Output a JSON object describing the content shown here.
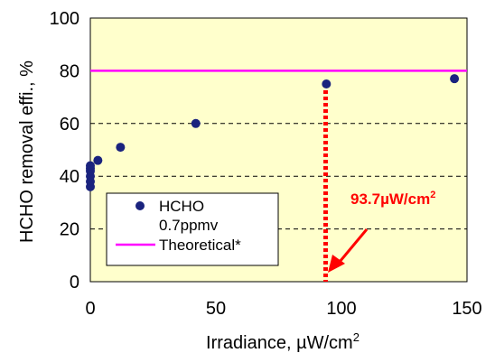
{
  "chart_data": {
    "type": "scatter",
    "xlabel": "Irradiance, µW/cm",
    "xlabel_sup": "2",
    "ylabel": "HCHO removal effi., %",
    "xlim": [
      0,
      150
    ],
    "ylim": [
      0,
      100
    ],
    "xticks": [
      "0",
      "50",
      "100",
      "150"
    ],
    "yticks": [
      "0",
      "20",
      "40",
      "60",
      "80",
      "100"
    ],
    "grid": "horizontal dashed",
    "background": "#ffffcc",
    "series": [
      {
        "name": "HCHO",
        "name_line2": "0.7ppmv",
        "color": "#1a237e",
        "x": [
          0,
          0,
          0,
          0,
          0,
          0,
          3,
          12,
          42,
          94,
          145
        ],
        "y": [
          36,
          38,
          40,
          42,
          43,
          44,
          46,
          51,
          60,
          75,
          77
        ]
      }
    ],
    "reference_line": {
      "name": "Theoretical*",
      "y": 80,
      "color": "#ff00ff"
    },
    "marker_line": {
      "x": 93.7,
      "color": "#ff0000",
      "style": "dotted"
    },
    "annotation": {
      "text": "93.7µW/cm",
      "sup": "2",
      "color": "#ff0000"
    },
    "legend_position": "bottom-left"
  }
}
